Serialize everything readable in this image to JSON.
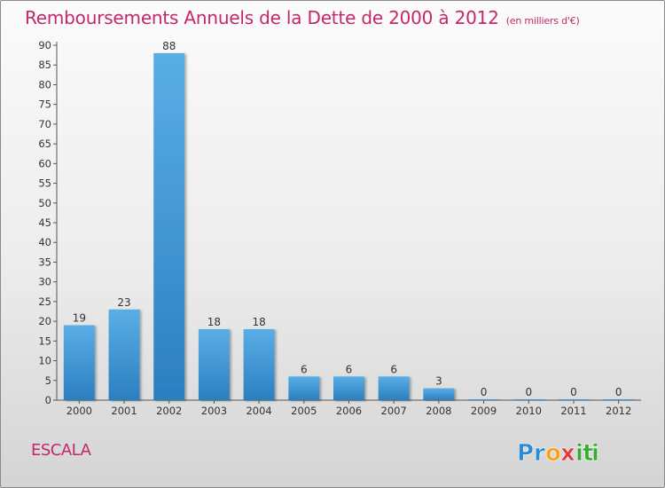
{
  "chart_data": {
    "type": "bar",
    "title": "Remboursements Annuels de la Dette de 2000 à 2012",
    "unit_label": "(en milliers d'€)",
    "categories": [
      "2000",
      "2001",
      "2002",
      "2003",
      "2004",
      "2005",
      "2006",
      "2007",
      "2008",
      "2009",
      "2010",
      "2011",
      "2012"
    ],
    "values": [
      19,
      23,
      88,
      18,
      18,
      6,
      6,
      6,
      3,
      0,
      0,
      0,
      0
    ],
    "data_labels": [
      "19",
      "23",
      "88",
      "18",
      "18",
      "6",
      "6",
      "6",
      "3",
      "0",
      "0",
      "0",
      "0"
    ],
    "ylim": [
      0,
      90
    ],
    "yticks": [
      "0",
      "5",
      "10",
      "15",
      "20",
      "25",
      "30",
      "35",
      "40",
      "45",
      "50",
      "55",
      "60",
      "65",
      "70",
      "75",
      "80",
      "85",
      "90"
    ],
    "grid": false,
    "legend": "none"
  },
  "commune": "ESCALA",
  "logo": {
    "letters": [
      "P",
      "r",
      "o",
      "x",
      "i",
      "t",
      "i"
    ],
    "colors": [
      "#2d8bd4",
      "#2d8bd4",
      "#f3a21b",
      "#e23b3b",
      "#3aaa35",
      "#3aaa35",
      "#3aaa35"
    ]
  },
  "colors": {
    "title": "#c4286b",
    "bar_light": "#5aaee6",
    "bar_dark": "#2b7fc0",
    "axis": "#555555",
    "text": "#333333"
  }
}
